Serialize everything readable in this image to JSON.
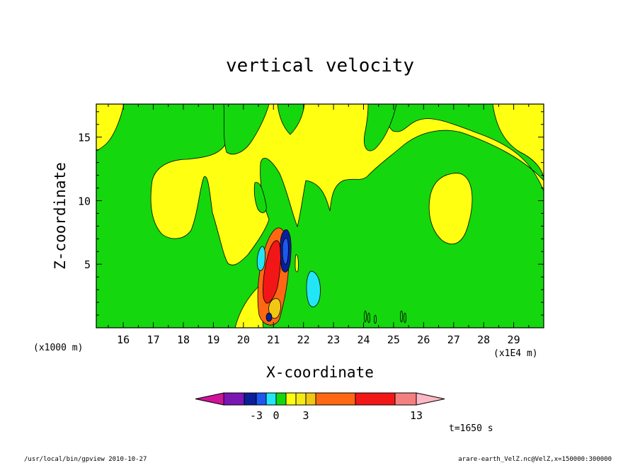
{
  "chart_data": {
    "type": "contour",
    "title": "vertical velocity",
    "xlabel": "X-coordinate",
    "ylabel": "Z-coordinate",
    "x_scale_unit": "(x1000 m)",
    "x_range_unit": "(x1E4 m)",
    "xlim": [
      15.1,
      30.0
    ],
    "ylim": [
      0.0,
      17.6
    ],
    "x_ticks": [
      "16",
      "17",
      "18",
      "19",
      "20",
      "21",
      "22",
      "23",
      "24",
      "25",
      "26",
      "27",
      "28",
      "29"
    ],
    "y_ticks": [
      "5",
      "10",
      "15"
    ],
    "colorbar": {
      "labels": [
        {
          "text": "-3",
          "index": 1
        },
        {
          "text": "0",
          "index": 3
        },
        {
          "text": "3",
          "index": 6
        },
        {
          "text": "13",
          "index": 10
        }
      ],
      "colors": [
        "#d0139a",
        "#7a16b4",
        "#0a1f9a",
        "#1d57ee",
        "#22e6f6",
        "#14d80d",
        "#ffff11",
        "#f6ea14",
        "#f0c813",
        "#ff6812",
        "#f31616",
        "#f47f7f",
        "#fcb8c4"
      ]
    },
    "time_label": "t=1650 s",
    "footer_left": "/usr/local/bin/gpview  2010-10-27",
    "footer_right": "arare-earth_VelZ.nc@VelZ,x=150000:300000",
    "colors": {
      "background_field": "#14d80d",
      "yellow_region": "#ffff11",
      "cyan_region": "#22e6f6",
      "blue_region": "#1d57ee",
      "darkblue_region": "#0a1f9a",
      "orange_region": "#ff6812",
      "red_region": "#f31616",
      "darkorange_region": "#f0c813"
    }
  }
}
